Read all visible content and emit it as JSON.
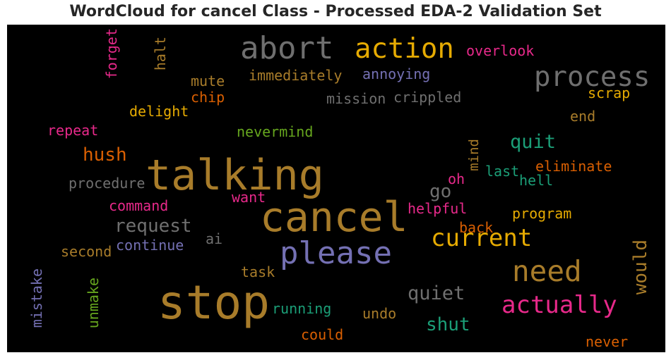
{
  "title": "WordCloud for cancel Class - Processed EDA-2 Validation Set",
  "chart_data": {
    "type": "wordcloud",
    "background": "#000000",
    "words": [
      {
        "text": "cancel",
        "color": "#a87c2a"
      },
      {
        "text": "stop",
        "color": "#a87c2a"
      },
      {
        "text": "talking",
        "color": "#a87c2a"
      },
      {
        "text": "please",
        "color": "#7470b3"
      },
      {
        "text": "abort",
        "color": "#6f6f6f"
      },
      {
        "text": "action",
        "color": "#e6ab02"
      },
      {
        "text": "process",
        "color": "#6f6f6f"
      },
      {
        "text": "need",
        "color": "#a87c2a"
      },
      {
        "text": "current",
        "color": "#e6ab02"
      },
      {
        "text": "actually",
        "color": "#e7298a"
      },
      {
        "text": "request",
        "color": "#6f6f6f"
      },
      {
        "text": "quiet",
        "color": "#6f6f6f"
      },
      {
        "text": "shut",
        "color": "#1b9e77"
      },
      {
        "text": "quit",
        "color": "#1b9e77"
      },
      {
        "text": "hush",
        "color": "#d95f02"
      },
      {
        "text": "would",
        "color": "#a87c2a"
      },
      {
        "text": "go",
        "color": "#6f6f6f"
      },
      {
        "text": "overlook",
        "color": "#e7298a"
      },
      {
        "text": "immediately",
        "color": "#a87c2a"
      },
      {
        "text": "annoying",
        "color": "#7470b3"
      },
      {
        "text": "mute",
        "color": "#a87c2a"
      },
      {
        "text": "chip",
        "color": "#d95f02"
      },
      {
        "text": "mission",
        "color": "#6f6f6f"
      },
      {
        "text": "crippled",
        "color": "#6f6f6f"
      },
      {
        "text": "scrap",
        "color": "#e6ab02"
      },
      {
        "text": "delight",
        "color": "#e6ab02"
      },
      {
        "text": "end",
        "color": "#a87c2a"
      },
      {
        "text": "repeat",
        "color": "#e7298a"
      },
      {
        "text": "nevermind",
        "color": "#66a61e"
      },
      {
        "text": "forget",
        "color": "#e7298a"
      },
      {
        "text": "halt",
        "color": "#a87c2a"
      },
      {
        "text": "mind",
        "color": "#a87c2a"
      },
      {
        "text": "last",
        "color": "#1b9e77"
      },
      {
        "text": "eliminate",
        "color": "#d95f02"
      },
      {
        "text": "oh",
        "color": "#e7298a"
      },
      {
        "text": "hell",
        "color": "#1b9e77"
      },
      {
        "text": "procedure",
        "color": "#6f6f6f"
      },
      {
        "text": "want",
        "color": "#e7298a"
      },
      {
        "text": "command",
        "color": "#e7298a"
      },
      {
        "text": "helpful",
        "color": "#e7298a"
      },
      {
        "text": "program",
        "color": "#e6ab02"
      },
      {
        "text": "back",
        "color": "#d95f02"
      },
      {
        "text": "ai",
        "color": "#6f6f6f"
      },
      {
        "text": "continue",
        "color": "#7470b3"
      },
      {
        "text": "second",
        "color": "#a87c2a"
      },
      {
        "text": "task",
        "color": "#a87c2a"
      },
      {
        "text": "mistake",
        "color": "#7470b3"
      },
      {
        "text": "unmake",
        "color": "#66a61e"
      },
      {
        "text": "running",
        "color": "#1b9e77"
      },
      {
        "text": "undo",
        "color": "#a87c2a"
      },
      {
        "text": "could",
        "color": "#d95f02"
      },
      {
        "text": "never",
        "color": "#d95f02"
      }
    ]
  }
}
